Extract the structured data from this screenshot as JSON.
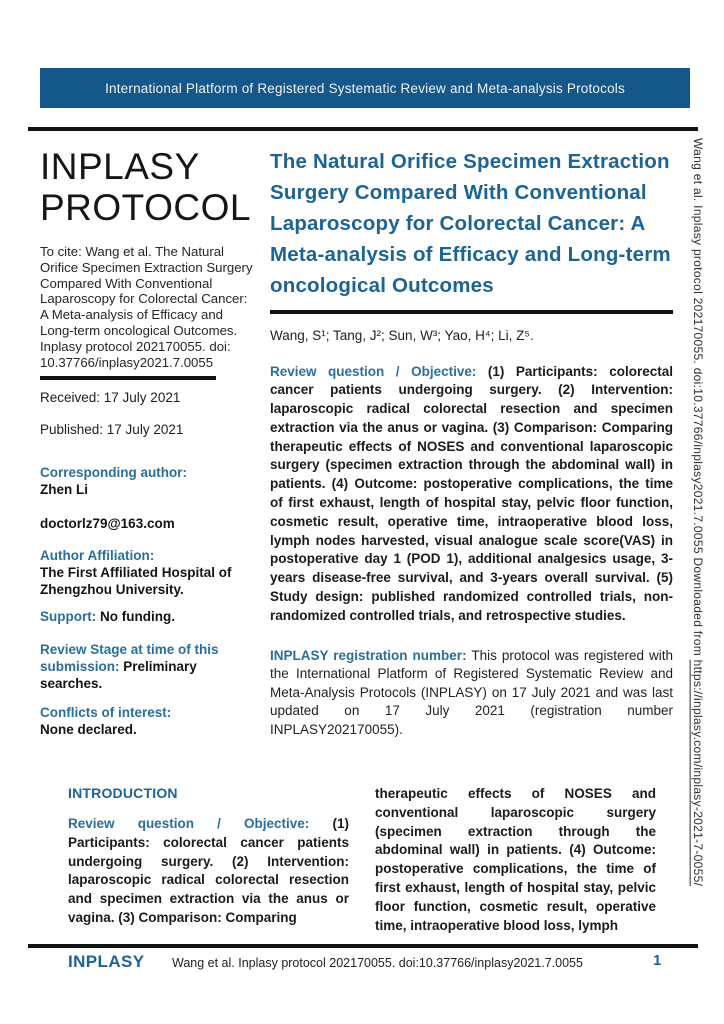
{
  "banner": {
    "text": "International Platform of Registered Systematic Review and Meta-analysis Protocols"
  },
  "left_column": {
    "wordmark_line1": "INPLASY",
    "wordmark_line2": "PROTOCOL",
    "citation": "To cite: Wang et al. The Natural Orifice Specimen Extraction Surgery Compared With Conventional Laparoscopy for Colorectal Cancer: A Meta-analysis of Efficacy and Long-term oncological Outcomes. Inplasy protocol 202170055. doi: 10.37766/inplasy2021.7.0055",
    "received": "Received: 17 July 2021",
    "published": "Published: 17 July 2021",
    "corresponding_author_label": "Corresponding author:",
    "corresponding_author_name": "Zhen Li",
    "email": "doctorlz79@163.com",
    "affiliation_label": "Author Affiliation:",
    "affiliation_value": "The First Affiliated Hospital of Zhengzhou University.",
    "support_label": "Support:",
    "support_value": "No funding.",
    "review_stage_label": "Review Stage at time of this submission:",
    "review_stage_value": "Preliminary searches.",
    "conflicts_label": "Conflicts of interest:",
    "conflicts_value": "None declared."
  },
  "main": {
    "title": "The Natural Orifice Specimen Extraction Surgery Compared With Conventional Laparoscopy for Colorectal Cancer: A Meta-analysis of Efficacy and Long-term oncological Outcomes",
    "authors": "Wang, S¹; Tang, J²; Sun, W³; Yao, H⁴; Li, Z⁵.",
    "review_question_label": "Review question / Objective:",
    "review_question_text": "(1) Participants: colorectal cancer patients undergoing surgery. (2) Intervention: laparoscopic radical colorectal resection and specimen extraction via the anus or vagina. (3) Comparison: Comparing therapeutic effects of NOSES and conventional laparoscopic surgery (specimen extraction through the abdominal wall) in patients. (4) Outcome: postoperative complications, the time of first exhaust, length of hospital stay, pelvic floor function, cosmetic result, operative time, intraoperative blood loss, lymph nodes harvested, visual analogue scale score(VAS) in postoperative day 1 (POD 1), additional analgesics usage, 3-years disease-free survival, and 3-years overall survival. (5) Study design: published randomized controlled trials, non-randomized controlled trials, and retrospective studies.",
    "registration_label": "INPLASY registration number:",
    "registration_text": "This protocol was registered with the International Platform of Registered Systematic Review and Meta-Analysis Protocols (INPLASY) on 17 July 2021 and was last updated on 17 July 2021 (registration number INPLASY202170055)."
  },
  "introduction": {
    "heading": "INTRODUCTION",
    "review_question_label": "Review question / Objective:",
    "col1_text": "(1) Participants: colorectal cancer patients undergoing surgery. (2) Intervention: laparoscopic radical colorectal resection and specimen extraction via the anus or vagina. (3) Comparison: Comparing",
    "col2_text": "therapeutic effects of NOSES and conventional laparoscopic surgery (specimen extraction through the abdominal wall) in patients. (4) Outcome: postoperative complications, the time of first exhaust, length of hospital stay, pelvic floor function, cosmetic result, operative time, intraoperative blood loss, lymph"
  },
  "footer": {
    "brand": "INPLASY",
    "citation": "Wang et al. Inplasy protocol 202170055. doi:10.37766/inplasy2021.7.0055",
    "page_number": "1"
  },
  "sidebar_vertical": {
    "text_before_url": "Wang et al. Inplasy protocol 202170055. doi:10.37766/inplasy2021.7.0055 Downloaded from ",
    "url": "https://inplasy.com/inplasy-2021-7-0055/"
  },
  "colors": {
    "banner_bg": "#16578a",
    "heading_blue": "#1d6496",
    "label_blue": "#2b6e9e",
    "rule_black": "#121212"
  }
}
